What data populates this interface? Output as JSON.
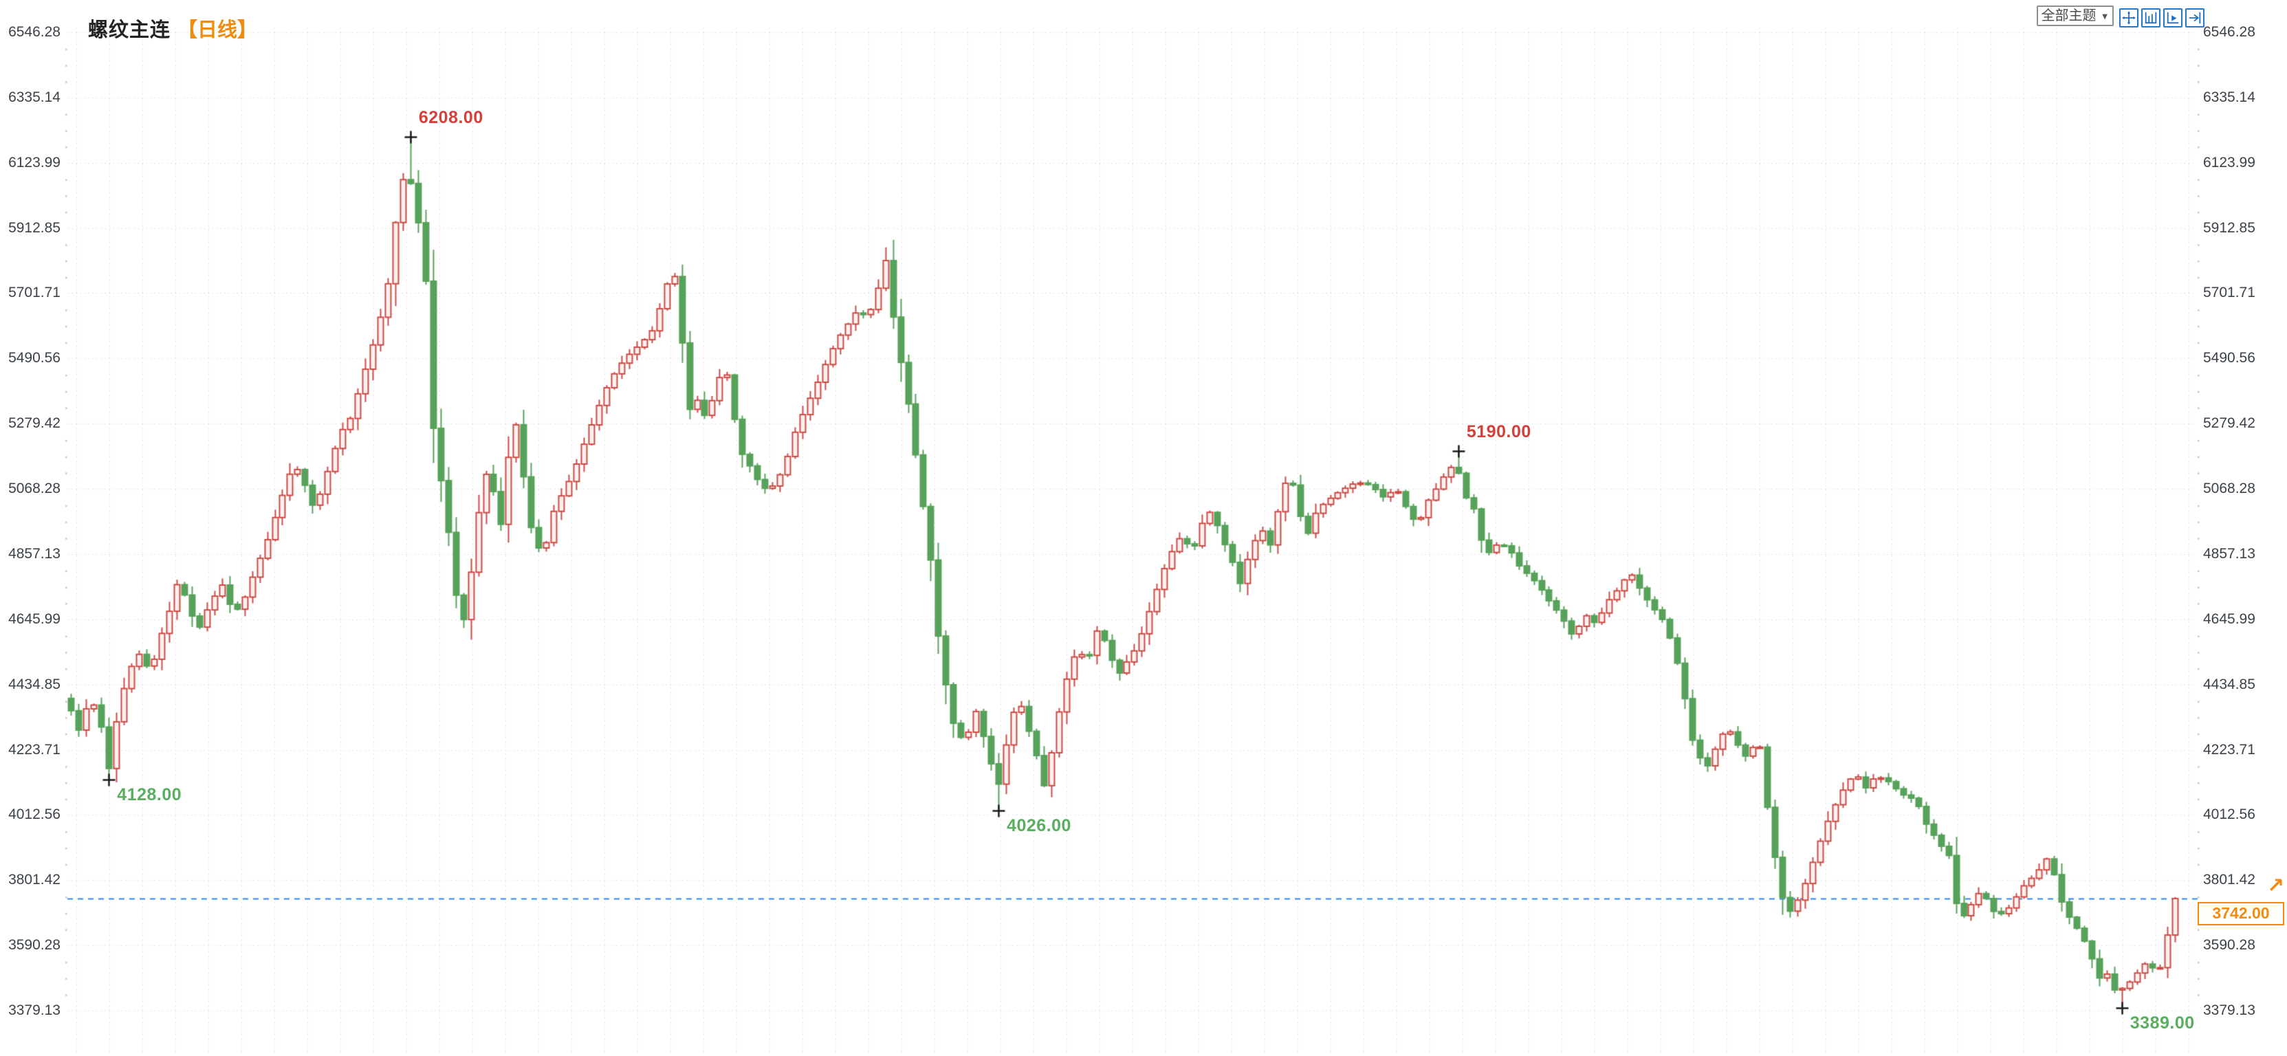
{
  "header": {
    "title": "螺纹主连",
    "period_label": "【日线】"
  },
  "toolbar": {
    "themes_dropdown_label": "全部主题",
    "dropdown_arrow": "▼",
    "icons": [
      "pan-crosshair-icon",
      "axis-range-icon",
      "axis-play-icon",
      "go-to-latest-icon"
    ]
  },
  "axis": {
    "side": "both",
    "labels": [
      "6546.28",
      "6335.14",
      "6123.99",
      "5912.85",
      "5701.71",
      "5490.56",
      "5279.42",
      "5068.28",
      "4857.13",
      "4645.99",
      "4434.85",
      "4223.71",
      "4012.56",
      "3801.42",
      "3590.28",
      "3379.13"
    ],
    "max": 6546.28,
    "min": 3379.13,
    "step": 211.143
  },
  "current_price": {
    "value": "3742.00",
    "price": 3742,
    "flag": "↗"
  },
  "colors": {
    "up": "#cc4a44",
    "up_fill": "#fcf1f0",
    "down": "#57a25a",
    "annotation_up": "#d4403a",
    "annotation_down": "#5aae5f",
    "current_line": "#2e86e5",
    "price_tag": "#ef8d13",
    "grid": "#e4e4e4",
    "minor_tick": "#c2c7cd",
    "axis_text": "#3b4149",
    "accent_blue": "#1a6ec5",
    "title_orange": "#f08c0c",
    "marker": "#1a1a1a"
  },
  "chart_data": {
    "type": "candlestick",
    "title": "螺纹主连 日线",
    "instrument": "螺纹主连",
    "period": "日线",
    "legend": "none",
    "grid": true,
    "ylim": [
      3379.13,
      6546.28
    ],
    "candle_count": 280,
    "up_means": "close >= open (red, hollow)",
    "down_means": "close < open (green, solid)",
    "path": [
      [
        0.0,
        4350
      ],
      [
        0.004,
        4280
      ],
      [
        0.009,
        4400
      ],
      [
        0.014,
        4310
      ],
      [
        0.018,
        4160
      ],
      [
        0.023,
        4380
      ],
      [
        0.029,
        4500
      ],
      [
        0.034,
        4550
      ],
      [
        0.037,
        4460
      ],
      [
        0.043,
        4600
      ],
      [
        0.048,
        4700
      ],
      [
        0.051,
        4780
      ],
      [
        0.057,
        4660
      ],
      [
        0.061,
        4620
      ],
      [
        0.066,
        4700
      ],
      [
        0.072,
        4760
      ],
      [
        0.077,
        4660
      ],
      [
        0.082,
        4710
      ],
      [
        0.087,
        4800
      ],
      [
        0.093,
        4900
      ],
      [
        0.098,
        5000
      ],
      [
        0.103,
        5100
      ],
      [
        0.106,
        5150
      ],
      [
        0.11,
        5100
      ],
      [
        0.115,
        5010
      ],
      [
        0.119,
        5060
      ],
      [
        0.123,
        5150
      ],
      [
        0.128,
        5250
      ],
      [
        0.134,
        5310
      ],
      [
        0.137,
        5400
      ],
      [
        0.142,
        5500
      ],
      [
        0.146,
        5600
      ],
      [
        0.15,
        5700
      ],
      [
        0.153,
        5880
      ],
      [
        0.157,
        6060
      ],
      [
        0.16,
        6100
      ],
      [
        0.163,
        6000
      ],
      [
        0.167,
        5850
      ],
      [
        0.169,
        5700
      ],
      [
        0.171,
        5320
      ],
      [
        0.174,
        5160
      ],
      [
        0.178,
        5000
      ],
      [
        0.181,
        4820
      ],
      [
        0.184,
        4660
      ],
      [
        0.186,
        4630
      ],
      [
        0.188,
        4710
      ],
      [
        0.19,
        4800
      ],
      [
        0.192,
        4950
      ],
      [
        0.195,
        5030
      ],
      [
        0.198,
        5150
      ],
      [
        0.201,
        5050
      ],
      [
        0.203,
        4910
      ],
      [
        0.206,
        5010
      ],
      [
        0.208,
        5180
      ],
      [
        0.21,
        5310
      ],
      [
        0.213,
        5240
      ],
      [
        0.215,
        5110
      ],
      [
        0.218,
        4960
      ],
      [
        0.221,
        4880
      ],
      [
        0.225,
        4870
      ],
      [
        0.229,
        4990
      ],
      [
        0.234,
        5060
      ],
      [
        0.238,
        5110
      ],
      [
        0.243,
        5200
      ],
      [
        0.247,
        5270
      ],
      [
        0.251,
        5340
      ],
      [
        0.256,
        5420
      ],
      [
        0.261,
        5470
      ],
      [
        0.266,
        5510
      ],
      [
        0.271,
        5540
      ],
      [
        0.276,
        5580
      ],
      [
        0.281,
        5680
      ],
      [
        0.286,
        5800
      ],
      [
        0.29,
        5560
      ],
      [
        0.294,
        5320
      ],
      [
        0.298,
        5360
      ],
      [
        0.302,
        5290
      ],
      [
        0.307,
        5410
      ],
      [
        0.311,
        5470
      ],
      [
        0.314,
        5350
      ],
      [
        0.318,
        5190
      ],
      [
        0.322,
        5150
      ],
      [
        0.326,
        5100
      ],
      [
        0.331,
        5060
      ],
      [
        0.335,
        5090
      ],
      [
        0.339,
        5140
      ],
      [
        0.344,
        5250
      ],
      [
        0.349,
        5330
      ],
      [
        0.354,
        5400
      ],
      [
        0.359,
        5480
      ],
      [
        0.364,
        5550
      ],
      [
        0.369,
        5600
      ],
      [
        0.374,
        5650
      ],
      [
        0.378,
        5620
      ],
      [
        0.382,
        5680
      ],
      [
        0.386,
        5780
      ],
      [
        0.388,
        5830
      ],
      [
        0.391,
        5600
      ],
      [
        0.395,
        5450
      ],
      [
        0.399,
        5300
      ],
      [
        0.403,
        5100
      ],
      [
        0.408,
        4880
      ],
      [
        0.412,
        4600
      ],
      [
        0.417,
        4380
      ],
      [
        0.421,
        4260
      ],
      [
        0.426,
        4270
      ],
      [
        0.43,
        4350
      ],
      [
        0.434,
        4260
      ],
      [
        0.438,
        4160
      ],
      [
        0.441,
        4110
      ],
      [
        0.445,
        4260
      ],
      [
        0.45,
        4400
      ],
      [
        0.454,
        4310
      ],
      [
        0.459,
        4200
      ],
      [
        0.463,
        4090
      ],
      [
        0.468,
        4300
      ],
      [
        0.473,
        4450
      ],
      [
        0.478,
        4550
      ],
      [
        0.483,
        4510
      ],
      [
        0.488,
        4620
      ],
      [
        0.493,
        4550
      ],
      [
        0.497,
        4460
      ],
      [
        0.502,
        4510
      ],
      [
        0.507,
        4560
      ],
      [
        0.513,
        4680
      ],
      [
        0.518,
        4780
      ],
      [
        0.522,
        4850
      ],
      [
        0.528,
        4920
      ],
      [
        0.533,
        4860
      ],
      [
        0.537,
        4950
      ],
      [
        0.542,
        5000
      ],
      [
        0.547,
        4910
      ],
      [
        0.552,
        4830
      ],
      [
        0.555,
        4750
      ],
      [
        0.561,
        4880
      ],
      [
        0.566,
        4940
      ],
      [
        0.569,
        4860
      ],
      [
        0.575,
        5040
      ],
      [
        0.579,
        5130
      ],
      [
        0.583,
        5010
      ],
      [
        0.587,
        4910
      ],
      [
        0.592,
        5000
      ],
      [
        0.597,
        5030
      ],
      [
        0.603,
        5060
      ],
      [
        0.611,
        5090
      ],
      [
        0.618,
        5080
      ],
      [
        0.624,
        5040
      ],
      [
        0.63,
        5070
      ],
      [
        0.636,
        4990
      ],
      [
        0.64,
        4950
      ],
      [
        0.645,
        5030
      ],
      [
        0.651,
        5090
      ],
      [
        0.655,
        5140
      ],
      [
        0.659,
        5130
      ],
      [
        0.663,
        5040
      ],
      [
        0.667,
        5000
      ],
      [
        0.672,
        4850
      ],
      [
        0.678,
        4890
      ],
      [
        0.683,
        4880
      ],
      [
        0.688,
        4820
      ],
      [
        0.697,
        4760
      ],
      [
        0.702,
        4710
      ],
      [
        0.708,
        4660
      ],
      [
        0.714,
        4590
      ],
      [
        0.72,
        4660
      ],
      [
        0.725,
        4630
      ],
      [
        0.73,
        4700
      ],
      [
        0.735,
        4740
      ],
      [
        0.741,
        4800
      ],
      [
        0.747,
        4730
      ],
      [
        0.751,
        4690
      ],
      [
        0.756,
        4650
      ],
      [
        0.762,
        4550
      ],
      [
        0.767,
        4390
      ],
      [
        0.771,
        4240
      ],
      [
        0.777,
        4160
      ],
      [
        0.783,
        4250
      ],
      [
        0.787,
        4300
      ],
      [
        0.792,
        4240
      ],
      [
        0.797,
        4190
      ],
      [
        0.802,
        4280
      ],
      [
        0.806,
        4060
      ],
      [
        0.809,
        3910
      ],
      [
        0.812,
        3810
      ],
      [
        0.815,
        3690
      ],
      [
        0.819,
        3710
      ],
      [
        0.825,
        3800
      ],
      [
        0.83,
        3900
      ],
      [
        0.835,
        3990
      ],
      [
        0.841,
        4080
      ],
      [
        0.848,
        4150
      ],
      [
        0.853,
        4100
      ],
      [
        0.858,
        4140
      ],
      [
        0.864,
        4120
      ],
      [
        0.87,
        4080
      ],
      [
        0.877,
        4060
      ],
      [
        0.881,
        3990
      ],
      [
        0.885,
        3950
      ],
      [
        0.89,
        3900
      ],
      [
        0.894,
        3870
      ],
      [
        0.897,
        3660
      ],
      [
        0.901,
        3700
      ],
      [
        0.905,
        3740
      ],
      [
        0.908,
        3770
      ],
      [
        0.914,
        3700
      ],
      [
        0.919,
        3690
      ],
      [
        0.924,
        3740
      ],
      [
        0.929,
        3790
      ],
      [
        0.934,
        3820
      ],
      [
        0.939,
        3870
      ],
      [
        0.941,
        3880
      ],
      [
        0.944,
        3770
      ],
      [
        0.948,
        3700
      ],
      [
        0.956,
        3620
      ],
      [
        0.961,
        3540
      ],
      [
        0.965,
        3470
      ],
      [
        0.969,
        3510
      ],
      [
        0.973,
        3400
      ],
      [
        0.976,
        3480
      ],
      [
        0.979,
        3470
      ],
      [
        0.983,
        3510
      ],
      [
        0.987,
        3540
      ],
      [
        0.991,
        3500
      ],
      [
        0.994,
        3530
      ],
      [
        0.996,
        3610
      ],
      [
        1.0,
        3742
      ]
    ],
    "extremes": [
      {
        "pos": 0.018,
        "kind": "low",
        "price": 4128,
        "label": "4128.00"
      },
      {
        "pos": 0.16,
        "kind": "high",
        "price": 6208,
        "label": "6208.00"
      },
      {
        "pos": 0.441,
        "kind": "low",
        "price": 4026,
        "label": "4026.00"
      },
      {
        "pos": 0.659,
        "kind": "high",
        "price": 5190,
        "label": "5190.00"
      },
      {
        "pos": 0.975,
        "kind": "low",
        "price": 3389,
        "label": "3389.00"
      }
    ],
    "current_price_line": 3742
  }
}
